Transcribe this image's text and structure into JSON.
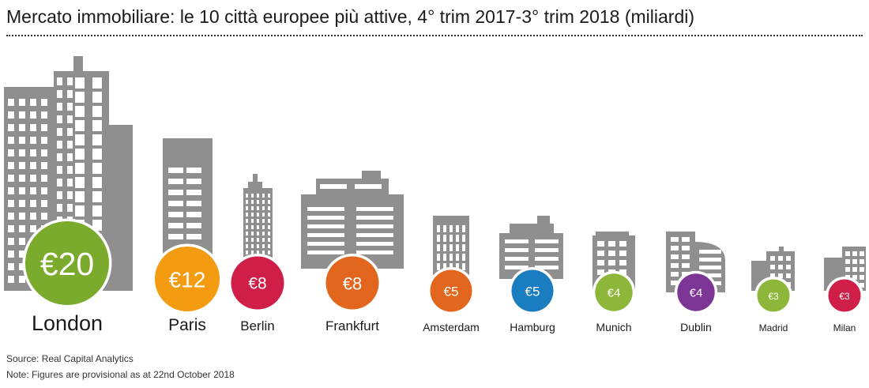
{
  "chart_data": {
    "type": "bar",
    "title": "Mercato immobiliare: le 10 città europee più attive, 4° trim 2017-3° trim 2018 (miliardi)",
    "unit": "€ billion",
    "categories": [
      "London",
      "Paris",
      "Berlin",
      "Frankfurt",
      "Amsterdam",
      "Hamburg",
      "Munich",
      "Dublin",
      "Madrid",
      "Milan"
    ],
    "values": [
      20,
      12,
      8,
      8,
      5,
      5,
      4,
      4,
      3,
      3
    ],
    "value_labels": [
      "€20",
      "€12",
      "€8",
      "€8",
      "€5",
      "€5",
      "€4",
      "€4",
      "€3",
      "€3"
    ],
    "colors": [
      "#7bab2c",
      "#f39c12",
      "#cf1f49",
      "#e2661d",
      "#e2661d",
      "#1a7dc0",
      "#8db73b",
      "#7d3595",
      "#8db73b",
      "#cf1f49"
    ],
    "building_color": "#8f8f90"
  },
  "footer": {
    "source": "Source: Real Capital Analytics",
    "note": "Note: Figures are provisional as at 22nd October 2018"
  }
}
